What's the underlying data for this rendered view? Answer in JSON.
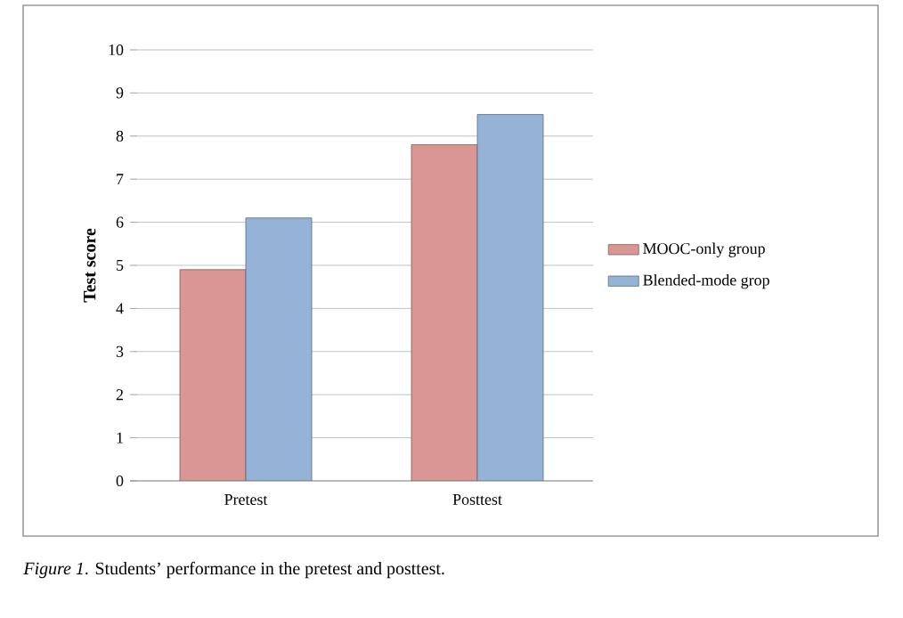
{
  "chart_data": {
    "type": "bar",
    "ylabel": "Test score",
    "categories": [
      "Pretest",
      "Posttest"
    ],
    "series": [
      {
        "name": "MOOC-only group",
        "color": "#d99694",
        "values": [
          4.9,
          7.8
        ]
      },
      {
        "name": "Blended-mode grop",
        "color": "#95b3d7",
        "values": [
          6.1,
          8.5
        ]
      }
    ],
    "ylim": [
      0,
      10
    ],
    "yticks": [
      0,
      1,
      2,
      3,
      4,
      5,
      6,
      7,
      8,
      9,
      10
    ],
    "grid": "y",
    "legend": "right",
    "annotations": [
      "*Figure 1*. Students’ performance in the pretest and posttest."
    ]
  }
}
